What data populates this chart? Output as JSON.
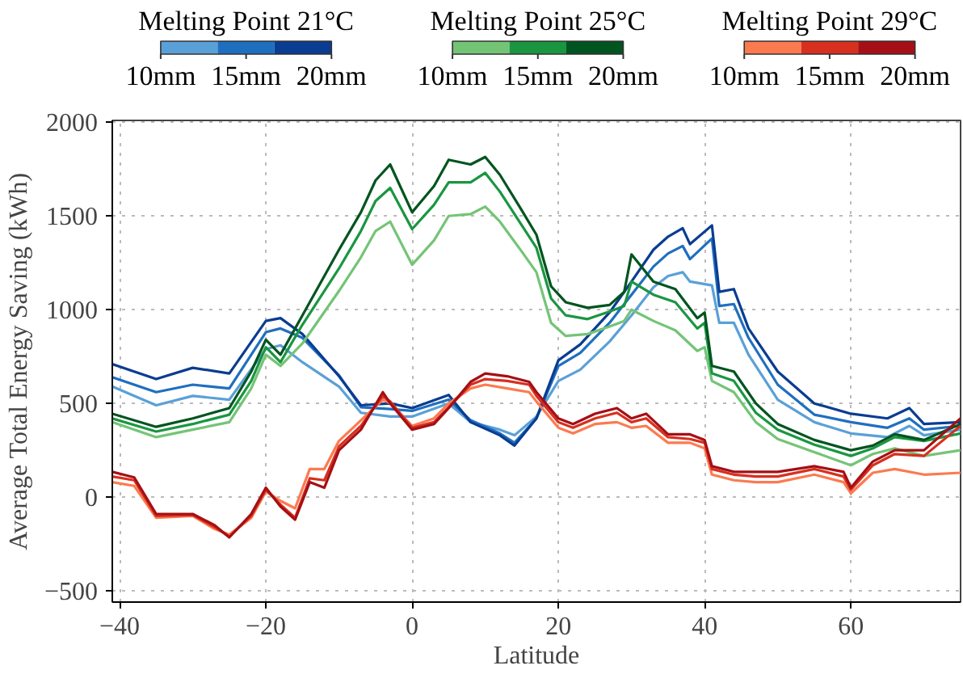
{
  "chart_data": {
    "type": "line",
    "xlabel": "Latitude",
    "ylabel": "Average Total Energy Saving (kWh)",
    "xlim": [
      -41,
      75
    ],
    "ylim": [
      -560,
      2010
    ],
    "xticks": [
      -40,
      -20,
      0,
      20,
      40,
      60
    ],
    "yticks": [
      -500,
      0,
      500,
      1000,
      1500,
      2000
    ],
    "grid": true,
    "legend": "top",
    "line_style": "solid",
    "annotations": [
      "Melting Point 21°C",
      "Melting Point 25°C",
      "Melting Point 29°C"
    ],
    "series": [
      {
        "name": "10mm",
        "color": "#5aa0d8",
        "x": [
          -41,
          -35,
          -30,
          -25,
          -20,
          -18,
          -15,
          -10,
          -7,
          -3,
          0,
          5,
          8,
          12,
          14,
          17,
          20,
          23,
          27,
          30,
          33,
          35,
          37,
          38,
          41,
          42,
          44,
          46,
          50,
          55,
          60,
          65,
          68,
          70,
          75
        ],
        "values": [
          590,
          490,
          540,
          520,
          790,
          810,
          720,
          590,
          450,
          430,
          430,
          500,
          400,
          360,
          330,
          430,
          620,
          680,
          830,
          970,
          1120,
          1180,
          1200,
          1150,
          1130,
          930,
          930,
          760,
          520,
          400,
          340,
          320,
          380,
          330,
          360
        ]
      },
      {
        "name": "15mm",
        "color": "#1f6fbf",
        "x": [
          -41,
          -35,
          -30,
          -25,
          -20,
          -18,
          -15,
          -10,
          -7,
          -3,
          0,
          5,
          8,
          12,
          14,
          17,
          20,
          23,
          27,
          30,
          33,
          35,
          37,
          38,
          41,
          42,
          44,
          46,
          50,
          55,
          60,
          65,
          68,
          70,
          75
        ],
        "values": [
          640,
          560,
          600,
          580,
          880,
          900,
          850,
          650,
          480,
          470,
          460,
          520,
          410,
          340,
          290,
          420,
          700,
          770,
          930,
          1080,
          1230,
          1300,
          1340,
          1270,
          1380,
          1020,
          1030,
          850,
          600,
          440,
          400,
          370,
          420,
          360,
          380
        ]
      },
      {
        "name": "20mm",
        "color": "#0a3d91",
        "x": [
          -41,
          -35,
          -30,
          -25,
          -20,
          -18,
          -15,
          -10,
          -7,
          -3,
          0,
          5,
          8,
          12,
          14,
          17,
          20,
          23,
          27,
          30,
          33,
          35,
          37,
          38,
          41,
          42,
          44,
          46,
          50,
          55,
          60,
          65,
          68,
          70,
          75
        ],
        "values": [
          710,
          630,
          690,
          660,
          940,
          955,
          870,
          645,
          490,
          500,
          475,
          545,
          400,
          330,
          275,
          420,
          730,
          815,
          985,
          1150,
          1320,
          1390,
          1435,
          1350,
          1450,
          1095,
          1110,
          900,
          670,
          500,
          445,
          420,
          475,
          390,
          400
        ]
      },
      {
        "name": "10mm",
        "color": "#74c476",
        "x": [
          -41,
          -35,
          -30,
          -25,
          -22,
          -20,
          -18,
          -15,
          -10,
          -7,
          -5,
          -3,
          0,
          3,
          5,
          8,
          10,
          12,
          15,
          17,
          19,
          21,
          24,
          27,
          29,
          30,
          33,
          36,
          39,
          40,
          41,
          44,
          47,
          50,
          55,
          60,
          63,
          66,
          70,
          75
        ],
        "values": [
          400,
          320,
          360,
          400,
          580,
          760,
          700,
          820,
          1100,
          1280,
          1420,
          1470,
          1240,
          1370,
          1500,
          1510,
          1550,
          1470,
          1310,
          1200,
          930,
          860,
          870,
          910,
          940,
          1000,
          940,
          890,
          780,
          800,
          620,
          560,
          400,
          310,
          240,
          170,
          230,
          260,
          220,
          250
        ]
      },
      {
        "name": "15mm",
        "color": "#1a9641",
        "x": [
          -41,
          -35,
          -30,
          -25,
          -22,
          -20,
          -18,
          -15,
          -10,
          -7,
          -5,
          -3,
          0,
          3,
          5,
          8,
          10,
          12,
          15,
          17,
          19,
          21,
          24,
          27,
          29,
          30,
          33,
          36,
          39,
          40,
          41,
          44,
          47,
          50,
          55,
          60,
          63,
          66,
          70,
          75
        ],
        "values": [
          420,
          350,
          390,
          440,
          620,
          800,
          720,
          920,
          1220,
          1420,
          1580,
          1650,
          1430,
          1560,
          1680,
          1680,
          1730,
          1630,
          1450,
          1330,
          1060,
          970,
          950,
          990,
          1020,
          1150,
          1080,
          1040,
          900,
          930,
          660,
          620,
          450,
          360,
          280,
          220,
          260,
          320,
          300,
          340
        ]
      },
      {
        "name": "20mm",
        "color": "#00541f",
        "x": [
          -41,
          -35,
          -30,
          -25,
          -22,
          -20,
          -18,
          -15,
          -10,
          -7,
          -5,
          -3,
          0,
          3,
          5,
          8,
          10,
          12,
          15,
          17,
          19,
          21,
          24,
          27,
          29,
          30,
          33,
          36,
          39,
          40,
          41,
          44,
          47,
          50,
          55,
          60,
          63,
          66,
          70,
          75
        ],
        "values": [
          445,
          375,
          420,
          475,
          670,
          840,
          760,
          970,
          1320,
          1520,
          1690,
          1775,
          1520,
          1660,
          1800,
          1775,
          1815,
          1720,
          1530,
          1400,
          1125,
          1040,
          1010,
          1025,
          1095,
          1295,
          1150,
          1110,
          955,
          985,
          700,
          670,
          500,
          390,
          305,
          250,
          275,
          335,
          305,
          390
        ]
      },
      {
        "name": "10mm",
        "color": "#fc7a50",
        "x": [
          -41,
          -38,
          -35,
          -30,
          -27,
          -25,
          -22,
          -20,
          -18,
          -16,
          -14,
          -12,
          -10,
          -7,
          -4,
          -3,
          0,
          3,
          5,
          8,
          10,
          13,
          16,
          17,
          20,
          22,
          25,
          28,
          30,
          32,
          35,
          38,
          40,
          41,
          44,
          47,
          50,
          55,
          59,
          60,
          63,
          66,
          70,
          75
        ],
        "values": [
          80,
          60,
          -110,
          -100,
          -170,
          -200,
          -110,
          30,
          -20,
          -60,
          150,
          150,
          300,
          410,
          520,
          500,
          380,
          420,
          500,
          580,
          600,
          580,
          560,
          510,
          370,
          340,
          390,
          400,
          370,
          380,
          290,
          290,
          260,
          120,
          90,
          80,
          80,
          120,
          80,
          20,
          130,
          150,
          120,
          130
        ]
      },
      {
        "name": "15mm",
        "color": "#d7301f",
        "x": [
          -41,
          -38,
          -35,
          -30,
          -27,
          -25,
          -22,
          -20,
          -18,
          -16,
          -14,
          -12,
          -10,
          -7,
          -4,
          -3,
          0,
          3,
          5,
          8,
          10,
          13,
          16,
          17,
          20,
          22,
          25,
          28,
          30,
          32,
          35,
          38,
          40,
          41,
          44,
          47,
          50,
          55,
          59,
          60,
          63,
          66,
          70,
          75
        ],
        "values": [
          110,
          90,
          -100,
          -95,
          -160,
          -210,
          -100,
          40,
          -40,
          -110,
          100,
          90,
          270,
          380,
          540,
          510,
          370,
          400,
          480,
          600,
          630,
          620,
          600,
          540,
          400,
          370,
          420,
          450,
          400,
          420,
          320,
          310,
          290,
          150,
          120,
          110,
          110,
          150,
          110,
          40,
          170,
          230,
          220,
          380
        ]
      },
      {
        "name": "20mm",
        "color": "#a50f15",
        "x": [
          -41,
          -38,
          -35,
          -30,
          -27,
          -25,
          -22,
          -20,
          -18,
          -16,
          -14,
          -12,
          -10,
          -7,
          -4,
          -3,
          0,
          3,
          5,
          8,
          10,
          13,
          16,
          17,
          20,
          22,
          25,
          28,
          30,
          32,
          35,
          38,
          40,
          41,
          44,
          47,
          50,
          55,
          59,
          60,
          63,
          66,
          70,
          75
        ],
        "values": [
          135,
          105,
          -90,
          -90,
          -150,
          -215,
          -90,
          50,
          -50,
          -120,
          80,
          50,
          250,
          360,
          560,
          500,
          360,
          390,
          475,
          615,
          660,
          645,
          615,
          560,
          420,
          390,
          445,
          475,
          420,
          445,
          335,
          335,
          305,
          165,
          135,
          135,
          135,
          165,
          135,
          50,
          190,
          250,
          250,
          420
        ]
      }
    ]
  }
}
